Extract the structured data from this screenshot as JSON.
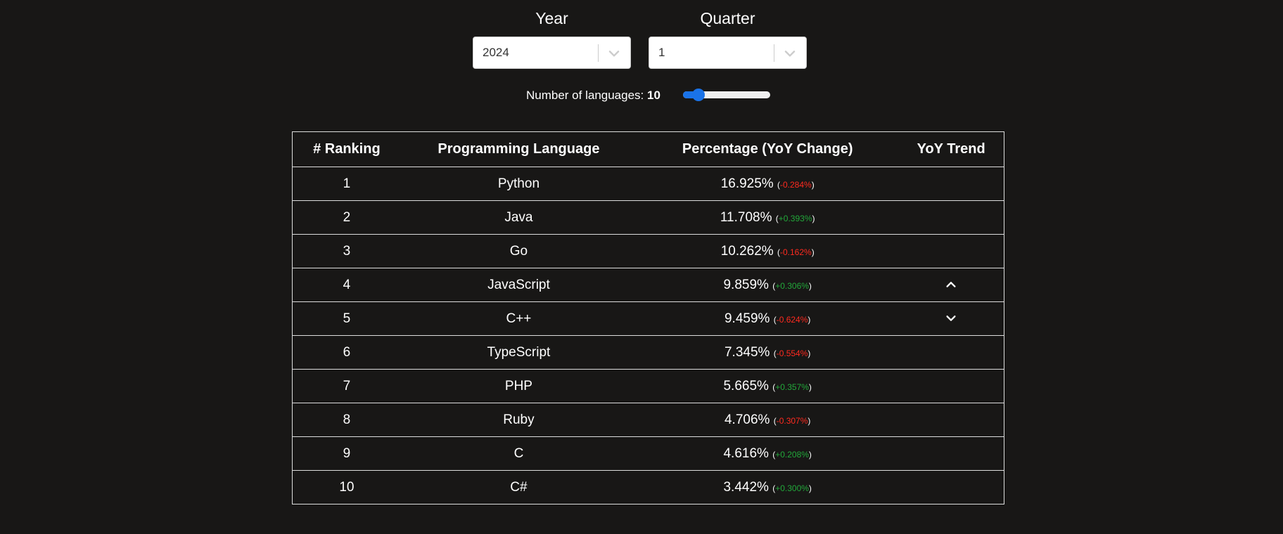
{
  "selectors": {
    "year": {
      "label": "Year",
      "value": "2024"
    },
    "quarter": {
      "label": "Quarter",
      "value": "1"
    }
  },
  "slider": {
    "label": "Number of languages:",
    "value": "10",
    "fill_fraction": 0.18
  },
  "colors": {
    "background": "#181716",
    "negative": "#ff2a1f",
    "positive": "#22a83a",
    "slider_accent": "#1a73e8"
  },
  "table": {
    "headers": [
      "# Ranking",
      "Programming Language",
      "Percentage (YoY Change)",
      "YoY Trend"
    ],
    "rows": [
      {
        "rank": "1",
        "language": "Python",
        "percentage": "16.925%",
        "change": "-0.284%",
        "direction": "neg",
        "trend": ""
      },
      {
        "rank": "2",
        "language": "Java",
        "percentage": "11.708%",
        "change": "+0.393%",
        "direction": "pos",
        "trend": ""
      },
      {
        "rank": "3",
        "language": "Go",
        "percentage": "10.262%",
        "change": "-0.162%",
        "direction": "neg",
        "trend": ""
      },
      {
        "rank": "4",
        "language": "JavaScript",
        "percentage": "9.859%",
        "change": "+0.306%",
        "direction": "pos",
        "trend": "chevron-up-icon"
      },
      {
        "rank": "5",
        "language": "C++",
        "percentage": "9.459%",
        "change": "-0.624%",
        "direction": "neg",
        "trend": "chevron-down-icon"
      },
      {
        "rank": "6",
        "language": "TypeScript",
        "percentage": "7.345%",
        "change": "-0.554%",
        "direction": "neg",
        "trend": ""
      },
      {
        "rank": "7",
        "language": "PHP",
        "percentage": "5.665%",
        "change": "+0.357%",
        "direction": "pos",
        "trend": ""
      },
      {
        "rank": "8",
        "language": "Ruby",
        "percentage": "4.706%",
        "change": "-0.307%",
        "direction": "neg",
        "trend": ""
      },
      {
        "rank": "9",
        "language": "C",
        "percentage": "4.616%",
        "change": "+0.208%",
        "direction": "pos",
        "trend": ""
      },
      {
        "rank": "10",
        "language": "C#",
        "percentage": "3.442%",
        "change": "+0.300%",
        "direction": "pos",
        "trend": ""
      }
    ]
  }
}
